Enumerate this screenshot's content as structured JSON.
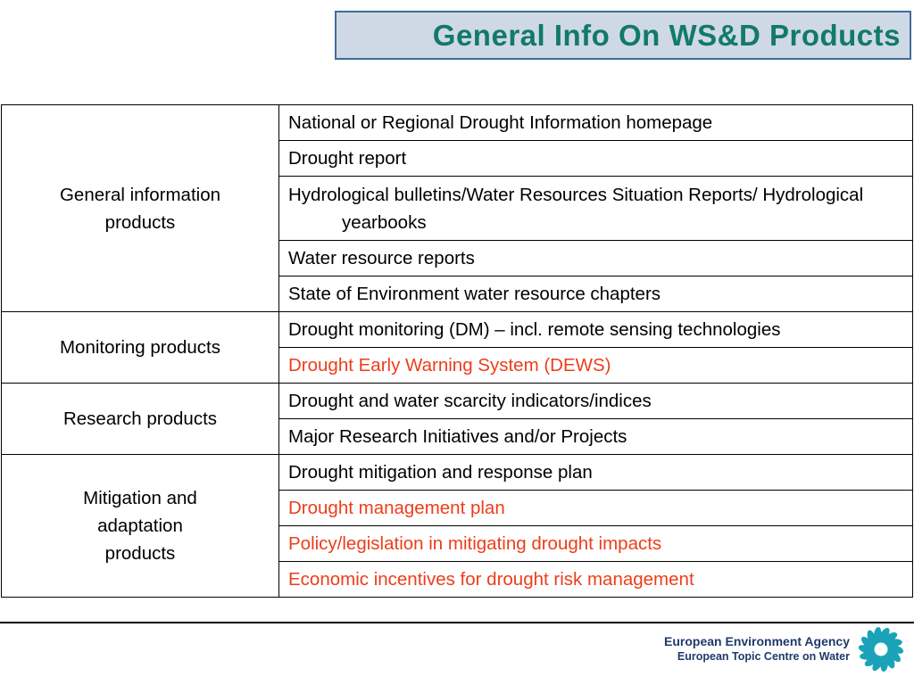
{
  "title": "General Info On WS&D Products",
  "categories": [
    {
      "label": "General information\nproducts",
      "items": [
        {
          "text": "National or Regional Drought Information homepage",
          "highlight": false
        },
        {
          "text": "Drought report",
          "highlight": false
        },
        {
          "text": "Hydrological bulletins/Water Resources Situation Reports/ Hydrological yearbooks",
          "highlight": false
        },
        {
          "text": "Water resource reports",
          "highlight": false
        },
        {
          "text": "State of Environment water resource chapters",
          "highlight": false
        }
      ]
    },
    {
      "label": "Monitoring products",
      "items": [
        {
          "text": "Drought monitoring (DM) – incl. remote sensing technologies",
          "highlight": false
        },
        {
          "text": "Drought Early Warning System (DEWS)",
          "highlight": true
        }
      ]
    },
    {
      "label": "Research products",
      "items": [
        {
          "text": "Drought and water scarcity indicators/indices",
          "highlight": false
        },
        {
          "text": "Major Research Initiatives and/or Projects",
          "highlight": false
        }
      ]
    },
    {
      "label": "Mitigation and\nadaptation\nproducts",
      "items": [
        {
          "text": "Drought mitigation and response plan",
          "highlight": false
        },
        {
          "text": "Drought management plan",
          "highlight": true
        },
        {
          "text": "Policy/legislation in mitigating drought impacts",
          "highlight": true
        },
        {
          "text": "Economic incentives for drought risk management",
          "highlight": true
        }
      ]
    }
  ],
  "footer": {
    "agency": "European Environment Agency",
    "centre": "European Topic Centre on Water",
    "logo_icon": "eea-sun-logo-icon"
  },
  "colors": {
    "title_text": "#127a6a",
    "title_bg": "#cfd9e5",
    "title_border": "#3f6d99",
    "highlight_text": "#ec3e1b",
    "footer_text": "#1f3a6b",
    "logo_color": "#1aa3b8"
  }
}
